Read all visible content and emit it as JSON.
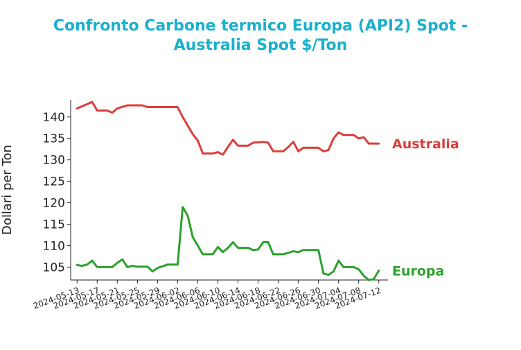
{
  "chart_data": {
    "type": "line",
    "title_line1": "Confronto Carbone termico Europa (API2) Spot -",
    "title_line2": "Australia Spot $/Ton",
    "xlabel": "",
    "ylabel": "Dollari per Ton",
    "ylim": [
      102,
      144
    ],
    "yticks": [
      105,
      110,
      115,
      120,
      125,
      130,
      135,
      140
    ],
    "xticks": [
      "2024-05-13",
      "2024-05-17",
      "2024-05-21",
      "2024-05-25",
      "2024-05-29",
      "2024-06-02",
      "2024-06-06",
      "2024-06-10",
      "2024-06-14",
      "2024-06-18",
      "2024-06-22",
      "2024-06-26",
      "2024-06-30",
      "2024-07-04",
      "2024-07-08",
      "2024-07-12"
    ],
    "grid": false,
    "colors": {
      "title": "#1ab0cc",
      "Australia": "#dc3d3a",
      "Europa": "#2ca02c"
    },
    "series": [
      {
        "name": "Australia",
        "color": "#dc3d3a",
        "points": [
          [
            "2024-05-13",
            142.0
          ],
          [
            "2024-05-15",
            143.0
          ],
          [
            "2024-05-16",
            143.5
          ],
          [
            "2024-05-17",
            141.5
          ],
          [
            "2024-05-19",
            141.5
          ],
          [
            "2024-05-20",
            141.0
          ],
          [
            "2024-05-21",
            142.0
          ],
          [
            "2024-05-23",
            142.7
          ],
          [
            "2024-05-26",
            142.7
          ],
          [
            "2024-05-27",
            142.3
          ],
          [
            "2024-06-02",
            142.3
          ],
          [
            "2024-06-03",
            140.0
          ],
          [
            "2024-06-04",
            138.0
          ],
          [
            "2024-06-05",
            136.0
          ],
          [
            "2024-06-06",
            134.5
          ],
          [
            "2024-06-07",
            131.5
          ],
          [
            "2024-06-09",
            131.5
          ],
          [
            "2024-06-10",
            131.8
          ],
          [
            "2024-06-11",
            131.2
          ],
          [
            "2024-06-12",
            133.0
          ],
          [
            "2024-06-13",
            134.7
          ],
          [
            "2024-06-14",
            133.3
          ],
          [
            "2024-06-16",
            133.3
          ],
          [
            "2024-06-17",
            134.0
          ],
          [
            "2024-06-19",
            134.2
          ],
          [
            "2024-06-20",
            134.0
          ],
          [
            "2024-06-21",
            132.0
          ],
          [
            "2024-06-23",
            132.0
          ],
          [
            "2024-06-24",
            133.0
          ],
          [
            "2024-06-25",
            134.2
          ],
          [
            "2024-06-26",
            132.0
          ],
          [
            "2024-06-27",
            132.8
          ],
          [
            "2024-06-30",
            132.8
          ],
          [
            "2024-07-01",
            132.0
          ],
          [
            "2024-07-02",
            132.3
          ],
          [
            "2024-07-03",
            135.0
          ],
          [
            "2024-07-04",
            136.4
          ],
          [
            "2024-07-05",
            135.8
          ],
          [
            "2024-07-07",
            135.8
          ],
          [
            "2024-07-08",
            135.0
          ],
          [
            "2024-07-09",
            135.3
          ],
          [
            "2024-07-10",
            133.8
          ],
          [
            "2024-07-12",
            133.8
          ]
        ]
      },
      {
        "name": "Europa",
        "color": "#2ca02c",
        "points": [
          [
            "2024-05-13",
            105.5
          ],
          [
            "2024-05-14",
            105.3
          ],
          [
            "2024-05-15",
            105.6
          ],
          [
            "2024-05-16",
            106.5
          ],
          [
            "2024-05-17",
            105.0
          ],
          [
            "2024-05-19",
            105.0
          ],
          [
            "2024-05-20",
            105.0
          ],
          [
            "2024-05-21",
            106.0
          ],
          [
            "2024-05-22",
            106.8
          ],
          [
            "2024-05-23",
            105.0
          ],
          [
            "2024-05-24",
            105.3
          ],
          [
            "2024-05-25",
            105.1
          ],
          [
            "2024-05-27",
            105.1
          ],
          [
            "2024-05-28",
            104.0
          ],
          [
            "2024-05-29",
            104.8
          ],
          [
            "2024-05-31",
            105.6
          ],
          [
            "2024-06-02",
            105.6
          ],
          [
            "2024-06-03",
            119.0
          ],
          [
            "2024-06-04",
            117.0
          ],
          [
            "2024-06-05",
            112.0
          ],
          [
            "2024-06-06",
            110.0
          ],
          [
            "2024-06-07",
            108.0
          ],
          [
            "2024-06-09",
            108.0
          ],
          [
            "2024-06-10",
            109.7
          ],
          [
            "2024-06-11",
            108.5
          ],
          [
            "2024-06-12",
            109.5
          ],
          [
            "2024-06-13",
            110.8
          ],
          [
            "2024-06-14",
            109.5
          ],
          [
            "2024-06-16",
            109.5
          ],
          [
            "2024-06-17",
            109.0
          ],
          [
            "2024-06-18",
            109.1
          ],
          [
            "2024-06-19",
            110.8
          ],
          [
            "2024-06-20",
            110.8
          ],
          [
            "2024-06-21",
            108.0
          ],
          [
            "2024-06-23",
            108.0
          ],
          [
            "2024-06-25",
            108.7
          ],
          [
            "2024-06-26",
            108.5
          ],
          [
            "2024-06-27",
            109.0
          ],
          [
            "2024-06-30",
            109.0
          ],
          [
            "2024-07-01",
            103.5
          ],
          [
            "2024-07-02",
            103.2
          ],
          [
            "2024-07-03",
            104.0
          ],
          [
            "2024-07-04",
            106.5
          ],
          [
            "2024-07-05",
            105.0
          ],
          [
            "2024-07-07",
            105.0
          ],
          [
            "2024-07-08",
            104.5
          ],
          [
            "2024-07-09",
            103.0
          ],
          [
            "2024-07-10",
            102.0
          ],
          [
            "2024-07-11",
            102.2
          ],
          [
            "2024-07-12",
            104.2
          ]
        ]
      }
    ]
  }
}
